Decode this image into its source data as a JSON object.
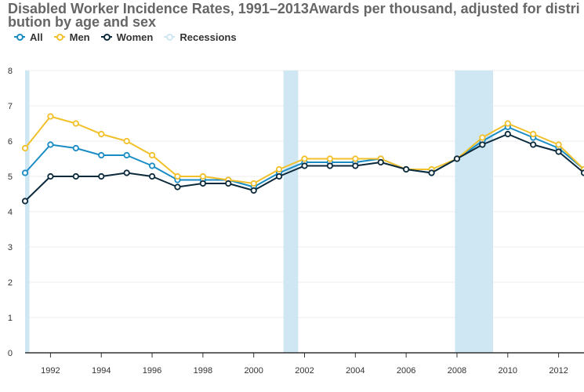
{
  "chart_data": {
    "type": "line",
    "title": "Disabled Worker Incidence Rates, 1991–2013Awards per thousand, adjusted for distribution by age and sex",
    "xlabel": "",
    "ylabel": "",
    "xlim": [
      1991,
      2013
    ],
    "ylim": [
      0,
      8
    ],
    "yticks": [
      0,
      1,
      2,
      3,
      4,
      5,
      6,
      7,
      8
    ],
    "xticks": [
      1992,
      1994,
      1996,
      1998,
      2000,
      2002,
      2004,
      2006,
      2008,
      2010,
      2012
    ],
    "grid": true,
    "legend_position": "top-left",
    "x": [
      1991,
      1992,
      1993,
      1994,
      1995,
      1996,
      1997,
      1998,
      1999,
      2000,
      2001,
      2002,
      2003,
      2004,
      2005,
      2006,
      2007,
      2008,
      2009,
      2010,
      2011,
      2012,
      2013
    ],
    "series": [
      {
        "name": "All",
        "color": "#1a8cc4",
        "values": [
          5.1,
          5.9,
          5.8,
          5.6,
          5.6,
          5.3,
          4.9,
          4.9,
          4.9,
          4.7,
          5.1,
          5.4,
          5.4,
          5.4,
          5.5,
          5.2,
          5.1,
          5.5,
          6.0,
          6.4,
          6.1,
          5.8,
          5.2
        ]
      },
      {
        "name": "Men",
        "color": "#f2c02b",
        "values": [
          5.8,
          6.7,
          6.5,
          6.2,
          6.0,
          5.6,
          5.0,
          5.0,
          4.9,
          4.8,
          5.2,
          5.5,
          5.5,
          5.5,
          5.5,
          5.2,
          5.2,
          5.5,
          6.1,
          6.5,
          6.2,
          5.9,
          5.2
        ]
      },
      {
        "name": "Women",
        "color": "#0b2a3c",
        "values": [
          4.3,
          5.0,
          5.0,
          5.0,
          5.1,
          5.0,
          4.7,
          4.8,
          4.8,
          4.6,
          5.0,
          5.3,
          5.3,
          5.3,
          5.4,
          5.2,
          5.1,
          5.5,
          5.9,
          6.2,
          5.9,
          5.7,
          5.1
        ]
      }
    ],
    "recessions": {
      "name": "Recessions",
      "color": "#cfe6f3",
      "periods": [
        [
          1991.0,
          1991.17
        ],
        [
          2001.17,
          2001.75
        ],
        [
          2007.92,
          2009.42
        ]
      ]
    }
  }
}
